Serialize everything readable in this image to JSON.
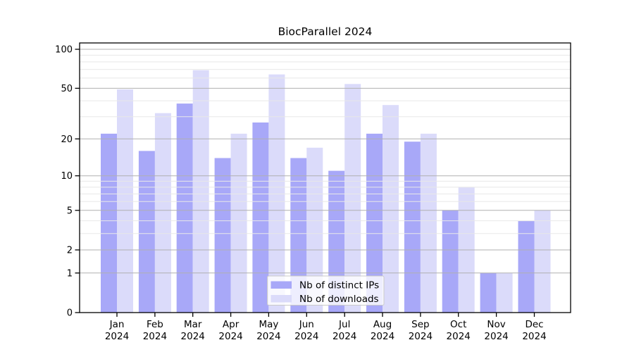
{
  "chart_data": {
    "type": "bar",
    "title": "BiocParallel 2024",
    "categories": [
      "Jan",
      "Feb",
      "Mar",
      "Apr",
      "May",
      "Jun",
      "Jul",
      "Aug",
      "Sep",
      "Oct",
      "Nov",
      "Dec"
    ],
    "category_year": "2024",
    "series": [
      {
        "name": "Nb of distinct IPs",
        "color": "#a8a8f8",
        "values": [
          22,
          16,
          38,
          14,
          27,
          14,
          11,
          22,
          19,
          5,
          1,
          4
        ]
      },
      {
        "name": "Nb of downloads",
        "color": "#dbdbfa",
        "values": [
          49,
          32,
          69,
          22,
          64,
          17,
          54,
          37,
          22,
          8,
          1,
          5
        ]
      }
    ],
    "xlabel": "",
    "ylabel": "",
    "y_scale": "log1p",
    "ylim": [
      0,
      112
    ],
    "y_major_ticks": [
      0,
      1,
      2,
      5,
      10,
      20,
      50,
      100
    ],
    "y_minor_gridlines": [
      3,
      4,
      6,
      7,
      8,
      9,
      30,
      40,
      60,
      70,
      80,
      90
    ],
    "grid": "horizontal-over-bars",
    "legend_position": "inside-bottom-center"
  },
  "colors": {
    "bar_distinct_ips": "#a8a8f8",
    "bar_downloads": "#dbdbfa",
    "grid_major": "#b0b0b0",
    "grid_minor": "#e8e8e8",
    "axis": "#000000",
    "legend_border": "#c9c9c9",
    "legend_fill": "rgba(255,255,255,0.8)",
    "background": "#ffffff"
  }
}
